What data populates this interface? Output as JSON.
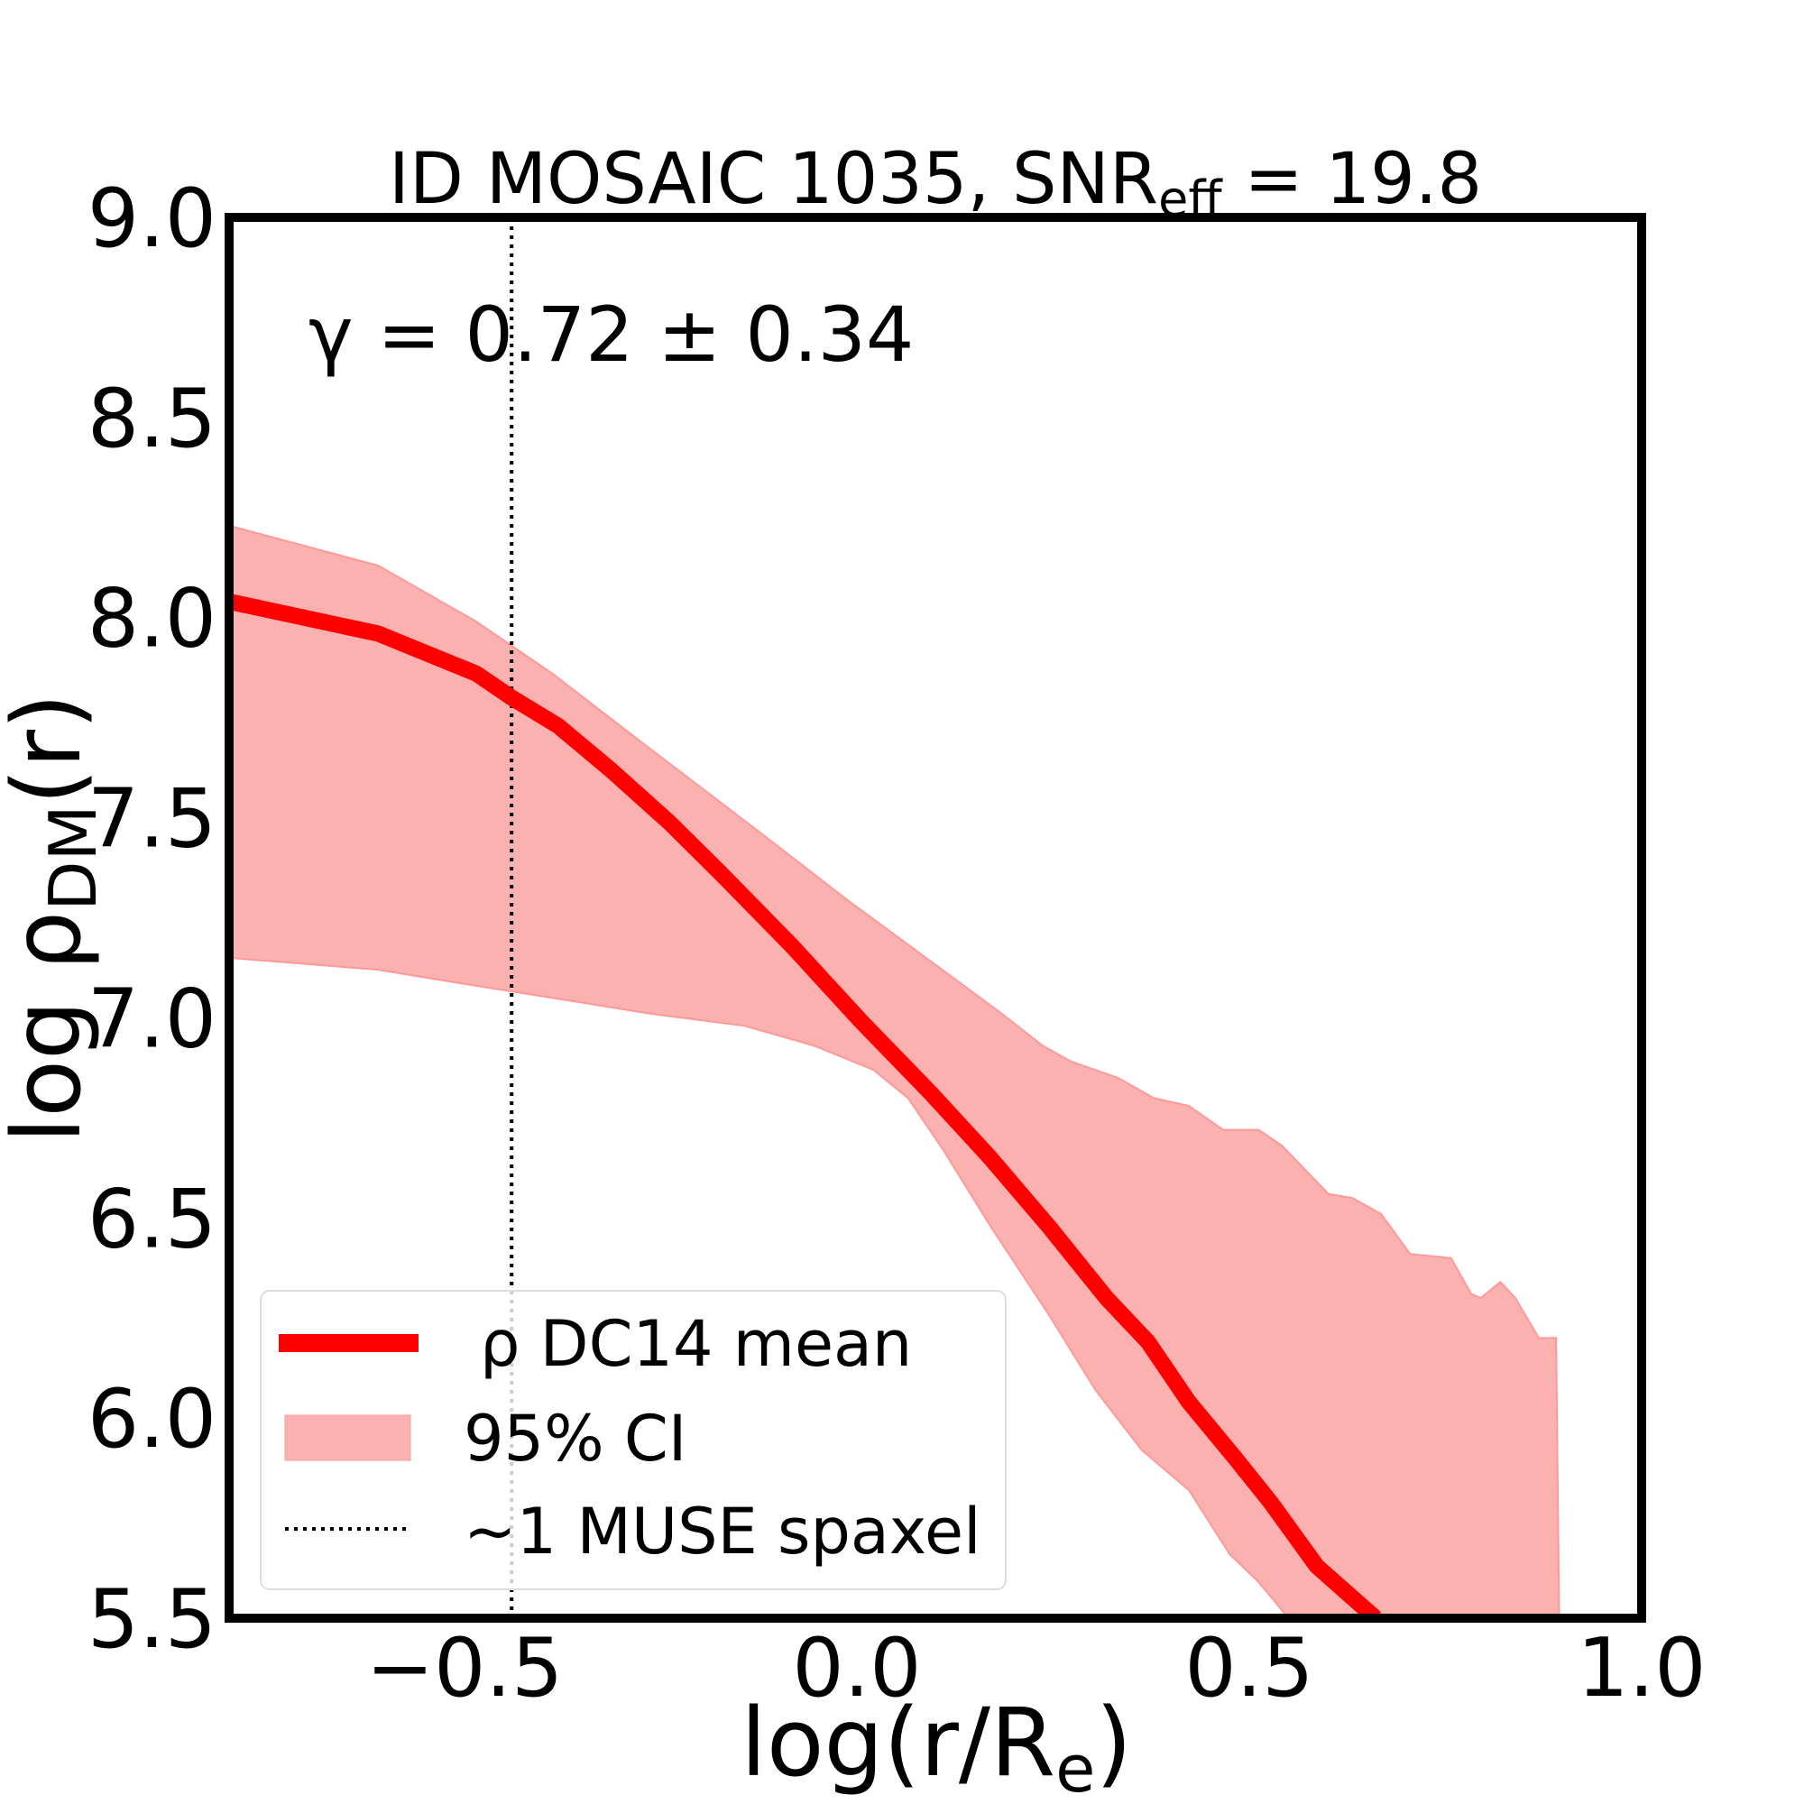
{
  "chart_data": {
    "type": "line",
    "title": "ID MOSAIC 1035, SNR",
    "title_sub": "eff",
    "title_suffix": " = 19.8",
    "annotation": "γ = 0.72 ± 0.34",
    "xlabel": "log(r/R",
    "xlabel_sub": "e",
    "xlabel_suffix": ")",
    "ylabel": "log ρ",
    "ylabel_sub": "DM",
    "ylabel_suffix": "(r)",
    "xlim": [
      -0.8,
      1.0
    ],
    "ylim": [
      5.5,
      9.0
    ],
    "xticks": [
      "−0.5",
      "0.0",
      "0.5",
      "1.0"
    ],
    "xtick_values": [
      -0.5,
      0.0,
      0.5,
      1.0
    ],
    "yticks": [
      "5.5",
      "6.0",
      "6.5",
      "7.0",
      "7.5",
      "8.0",
      "8.5",
      "9.0"
    ],
    "ytick_values": [
      5.5,
      6.0,
      6.5,
      7.0,
      7.5,
      8.0,
      8.5,
      9.0
    ],
    "grid": false,
    "legend_placement": "lower-left",
    "colors": {
      "mean": "#ff0000",
      "band": "#fcb1b1",
      "spaxel": "#000000"
    },
    "series": [
      {
        "name": "ρ DC14 mean",
        "x": [
          -0.8,
          -0.61,
          -0.485,
          -0.44,
          -0.381,
          -0.314,
          -0.24,
          -0.173,
          -0.083,
          0.006,
          0.095,
          0.17,
          0.244,
          0.318,
          0.371,
          0.423,
          0.482,
          0.527,
          0.586,
          0.661
        ],
        "y": [
          8.04,
          7.96,
          7.86,
          7.8,
          7.73,
          7.62,
          7.49,
          7.36,
          7.18,
          6.99,
          6.81,
          6.65,
          6.48,
          6.3,
          6.19,
          6.04,
          5.9,
          5.79,
          5.63,
          5.5
        ]
      }
    ],
    "band": {
      "name": "95% CI",
      "upper_x": [
        -0.8,
        -0.61,
        -0.485,
        -0.388,
        -0.262,
        -0.128,
        -0.009,
        0.095,
        0.185,
        0.237,
        0.274,
        0.333,
        0.378,
        0.423,
        0.467,
        0.512,
        0.542,
        0.601,
        0.631,
        0.668,
        0.705,
        0.757,
        0.783,
        0.795,
        0.82,
        0.839,
        0.869,
        0.891,
        0.896
      ],
      "upper_y": [
        8.23,
        8.13,
        7.99,
        7.86,
        7.67,
        7.47,
        7.29,
        7.14,
        7.01,
        6.93,
        6.89,
        6.85,
        6.8,
        6.78,
        6.72,
        6.72,
        6.68,
        6.56,
        6.55,
        6.51,
        6.41,
        6.4,
        6.31,
        6.3,
        6.34,
        6.3,
        6.2,
        6.2,
        5.3
      ],
      "lower_x": [
        -0.8,
        -0.61,
        -0.485,
        -0.388,
        -0.262,
        -0.143,
        -0.054,
        0.021,
        0.065,
        0.11,
        0.17,
        0.244,
        0.304,
        0.363,
        0.423,
        0.475,
        0.512,
        0.55,
        0.6
      ],
      "lower_y": [
        7.15,
        7.12,
        7.08,
        7.05,
        7.01,
        6.98,
        6.93,
        6.87,
        6.8,
        6.67,
        6.48,
        6.26,
        6.07,
        5.92,
        5.82,
        5.66,
        5.59,
        5.5,
        5.3
      ]
    },
    "vline": {
      "name": "~1 MUSE spaxel",
      "x": -0.44
    },
    "legend": [
      "ρ DC14 mean",
      "95% CI",
      "~1 MUSE spaxel"
    ]
  }
}
